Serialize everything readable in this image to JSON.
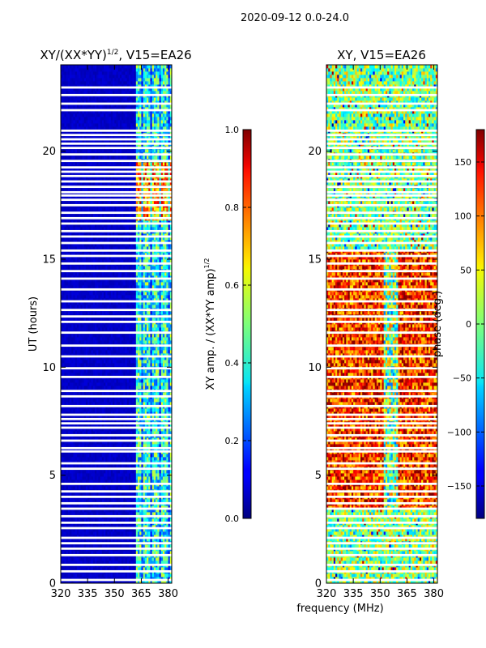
{
  "figure": {
    "suptitle": "2020-09-12 0.0-24.0",
    "xlabel": "frequency (MHz)"
  },
  "chart_data": [
    {
      "type": "heatmap",
      "title_main": "XY/(XX*YY)",
      "title_sup": "1/2",
      "title_tail": ", V15=EA26",
      "xlabel": "",
      "ylabel": "UT (hours)",
      "xlim": [
        320,
        382
      ],
      "ylim": [
        0,
        24
      ],
      "xticks": [
        320,
        335,
        350,
        365,
        380
      ],
      "yticks": [
        0,
        5,
        10,
        15,
        20
      ],
      "colorbar": {
        "label_main": "XY amp. / (XX*YY amp)",
        "label_sup": "1/2",
        "range": [
          0.0,
          1.0
        ],
        "ticks": [
          "0.0",
          "0.2",
          "0.4",
          "0.6",
          "0.8",
          "1.0"
        ],
        "colormap": "jet"
      },
      "description_values": {
        "band_low_mhz": [
          320,
          362
        ],
        "band_low_amp": 0.05,
        "band_high_mhz": [
          362,
          382
        ],
        "band_high_amp": 0.45,
        "high_amp_hours": [
          16.8,
          19.5
        ]
      },
      "flagged_hours": [
        0.15,
        0.55,
        0.85,
        1.3,
        1.6,
        1.85,
        2.1,
        2.55,
        2.8,
        3.1,
        3.45,
        3.7,
        4.0,
        4.25,
        4.6,
        5.3,
        5.55,
        6.1,
        6.25,
        6.6,
        6.85,
        7.2,
        7.4,
        7.6,
        7.8,
        8.2,
        8.65,
        8.9,
        9.55,
        9.95,
        10.5,
        11.0,
        11.6,
        12.1,
        12.35,
        12.65,
        13.05,
        13.6,
        14.1,
        14.45,
        14.8,
        15.15,
        15.4,
        15.75,
        16.05,
        16.3,
        16.65,
        16.9,
        17.15,
        17.5,
        17.75,
        17.95,
        18.1,
        18.35,
        18.6,
        18.85,
        19.05,
        19.25,
        19.55,
        19.85,
        20.15,
        20.35,
        20.55,
        20.75,
        20.95,
        21.9,
        22.2,
        22.6,
        22.95
      ]
    },
    {
      "type": "heatmap",
      "title_main": "XY, V15=EA26",
      "xlabel": "",
      "ylabel": "",
      "xlim": [
        320,
        382
      ],
      "ylim": [
        0,
        24
      ],
      "xticks": [
        320,
        335,
        350,
        365,
        380
      ],
      "yticks": [
        0,
        5,
        10,
        15,
        20
      ],
      "colorbar": {
        "label_main": "phase (deg.)",
        "range": [
          -180,
          180
        ],
        "ticks": [
          "−150",
          "−100",
          "−50",
          "0",
          "50",
          "100",
          "150"
        ],
        "tick_values": [
          -150,
          -100,
          -50,
          0,
          50,
          100,
          150
        ],
        "colormap": "jet"
      },
      "description_values": {
        "coherent_hours": [
          3.5,
          15.5
        ],
        "coherent_phase_deg": 120,
        "noise_phase_range_deg": [
          -180,
          180
        ]
      },
      "flagged_hours": [
        0.15,
        0.55,
        0.85,
        1.3,
        1.6,
        1.85,
        2.1,
        2.55,
        2.8,
        3.1,
        3.45,
        3.7,
        4.0,
        4.25,
        4.6,
        5.3,
        5.55,
        6.1,
        6.25,
        6.6,
        6.85,
        7.2,
        7.4,
        7.6,
        7.8,
        8.2,
        8.65,
        8.9,
        9.55,
        9.95,
        10.5,
        11.0,
        11.6,
        12.1,
        12.35,
        12.65,
        13.05,
        13.6,
        14.1,
        14.45,
        14.8,
        15.15,
        15.4,
        15.75,
        16.05,
        16.3,
        16.65,
        16.9,
        17.15,
        17.5,
        17.75,
        17.95,
        18.1,
        18.35,
        18.6,
        18.85,
        19.05,
        19.25,
        19.55,
        19.85,
        20.15,
        20.35,
        20.55,
        20.75,
        20.95,
        21.9,
        22.2,
        22.6,
        22.95
      ]
    }
  ]
}
